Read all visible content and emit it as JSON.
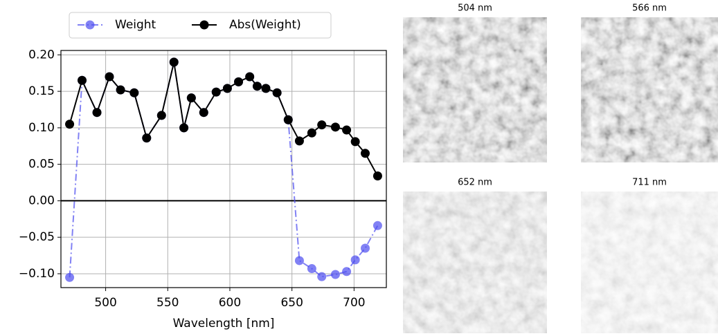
{
  "chart_data": {
    "type": "line",
    "xlabel": "Wavelength [nm]",
    "x": [
      471,
      481,
      493,
      503,
      512,
      523,
      533,
      545,
      555,
      563,
      569,
      579,
      589,
      598,
      607,
      616,
      622,
      629,
      638,
      647,
      656,
      666,
      674,
      685,
      694,
      701,
      709,
      719
    ],
    "series": [
      {
        "name": "Weight",
        "color": "#4b4bf0",
        "linestyle": "dashdot",
        "opacity": 0.7,
        "values": [
          -0.105,
          0.165,
          0.121,
          0.17,
          0.152,
          0.148,
          0.086,
          0.117,
          0.19,
          0.1,
          0.141,
          0.121,
          0.149,
          0.154,
          0.163,
          0.17,
          0.157,
          0.154,
          0.148,
          0.111,
          -0.082,
          -0.093,
          -0.104,
          -0.101,
          -0.097,
          -0.081,
          -0.065,
          -0.034
        ]
      },
      {
        "name": "Abs(Weight)",
        "color": "#000000",
        "linestyle": "solid",
        "opacity": 1,
        "values": [
          0.105,
          0.165,
          0.121,
          0.17,
          0.152,
          0.148,
          0.086,
          0.117,
          0.19,
          0.1,
          0.141,
          0.121,
          0.149,
          0.154,
          0.163,
          0.17,
          0.157,
          0.154,
          0.148,
          0.111,
          0.082,
          0.093,
          0.104,
          0.101,
          0.097,
          0.081,
          0.065,
          0.034
        ]
      }
    ],
    "xlim": [
      464,
      726
    ],
    "xticks": [
      500,
      550,
      600,
      650,
      700
    ],
    "ylim": [
      -0.119,
      0.206
    ],
    "yticks": [
      {
        "value": -0.1,
        "label": "−0.10"
      },
      {
        "value": -0.05,
        "label": "−0.05"
      },
      {
        "value": 0,
        "label": "0.00"
      },
      {
        "value": 0.05,
        "label": "0.05"
      },
      {
        "value": 0.1,
        "label": "0.10"
      },
      {
        "value": 0.15,
        "label": "0.15"
      },
      {
        "value": 0.2,
        "label": "0.20"
      }
    ],
    "hline": 0,
    "grid": true,
    "legend": "upper center"
  },
  "images": [
    {
      "title": "504 nm"
    },
    {
      "title": "566 nm"
    },
    {
      "title": "652 nm"
    },
    {
      "title": "711 nm"
    }
  ]
}
